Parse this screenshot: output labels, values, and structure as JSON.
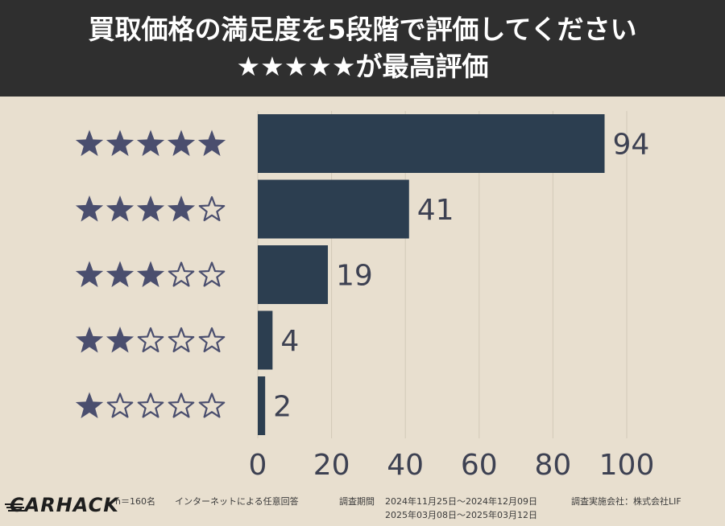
{
  "header": {
    "line1": "買取価格の満足度を5段階で評価してください",
    "line2": "★★★★★が最高評価"
  },
  "colors": {
    "bar": "#2c3e50",
    "star": "#4a4e6e",
    "grid": "#d2c9b8",
    "label": "#3d4152",
    "background": "#e8dfcf"
  },
  "chart_data": {
    "type": "bar",
    "orientation": "horizontal",
    "categories": [
      "★★★★★",
      "★★★★☆",
      "★★★☆☆",
      "★★☆☆☆",
      "★☆☆☆☆"
    ],
    "stars_filled": [
      5,
      4,
      3,
      2,
      1
    ],
    "values": [
      94,
      41,
      19,
      4,
      2
    ],
    "xlim": [
      0,
      100
    ],
    "xticks": [
      0,
      20,
      40,
      60,
      80,
      100
    ],
    "grid": true,
    "title": "",
    "xlabel": "",
    "ylabel": ""
  },
  "footer": {
    "logo": "CARHACK",
    "sample": "n＝160名",
    "method": "インターネットによる任意回答",
    "period_label": "調査期間",
    "period_1": "2024年11月25日～2024年12月09日",
    "period_2": "2025年03月08日～2025年03月12日",
    "company": "調査実施会社：株式会社LIF"
  }
}
